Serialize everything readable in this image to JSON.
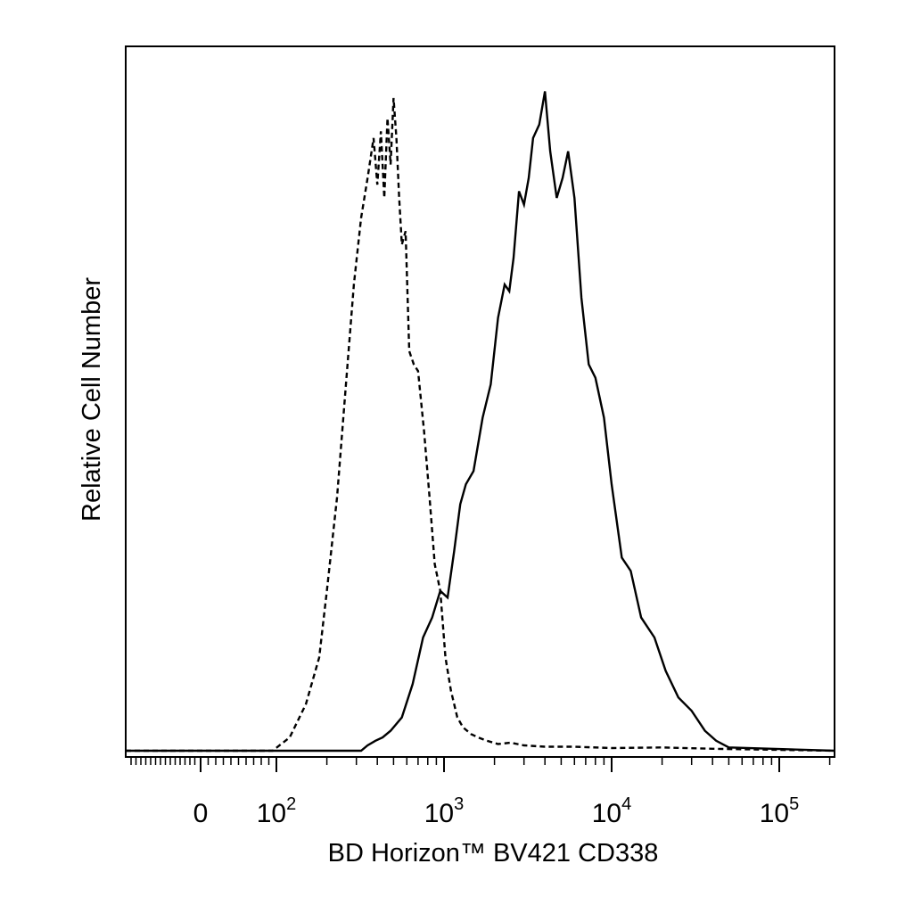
{
  "chart_data": {
    "type": "line",
    "title": "",
    "xlabel": "BD Horizon™ BV421 CD338",
    "ylabel": "Relative Cell Number",
    "x_scale": "biexponential",
    "xlim": [
      -60,
      200000
    ],
    "ylim": [
      0,
      1
    ],
    "grid": false,
    "x_ticks": [
      {
        "base": "0",
        "exp": ""
      },
      {
        "base": "10",
        "exp": "2"
      },
      {
        "base": "10",
        "exp": "3"
      },
      {
        "base": "10",
        "exp": "4"
      },
      {
        "base": "10",
        "exp": "5"
      }
    ],
    "series": [
      {
        "style": "dashed",
        "x": [
          0,
          95,
          120,
          150,
          180,
          200,
          230,
          260,
          290,
          320,
          350,
          380,
          400,
          420,
          440,
          460,
          480,
          500,
          520,
          540,
          560,
          590,
          620,
          660,
          700,
          760,
          820,
          880,
          950,
          1020,
          1100,
          1200,
          1300,
          1450,
          1600,
          1800,
          2100,
          2500,
          3000,
          4000,
          6000,
          10000,
          20000,
          40000,
          200000
        ],
        "y": [
          0,
          0,
          0.02,
          0.07,
          0.14,
          0.24,
          0.38,
          0.55,
          0.7,
          0.8,
          0.86,
          0.92,
          0.85,
          0.93,
          0.83,
          0.95,
          0.88,
          0.98,
          0.92,
          0.83,
          0.76,
          0.78,
          0.6,
          0.58,
          0.57,
          0.48,
          0.38,
          0.28,
          0.24,
          0.14,
          0.09,
          0.05,
          0.035,
          0.025,
          0.02,
          0.015,
          0.01,
          0.012,
          0.008,
          0.006,
          0.006,
          0.004,
          0.005,
          0.003,
          0
        ]
      },
      {
        "style": "solid",
        "x": [
          0,
          320,
          350,
          390,
          430,
          480,
          560,
          650,
          750,
          850,
          950,
          1050,
          1150,
          1250,
          1350,
          1500,
          1700,
          1900,
          2100,
          2300,
          2450,
          2600,
          2800,
          3000,
          3200,
          3400,
          3700,
          4000,
          4300,
          4700,
          5100,
          5500,
          6000,
          6600,
          7300,
          8000,
          9000,
          10000,
          11500,
          13000,
          15000,
          18000,
          21000,
          25000,
          30000,
          36000,
          42000,
          50000,
          200000
        ],
        "y": [
          0,
          0,
          0.008,
          0.015,
          0.02,
          0.03,
          0.05,
          0.1,
          0.17,
          0.2,
          0.24,
          0.23,
          0.3,
          0.37,
          0.4,
          0.42,
          0.5,
          0.55,
          0.65,
          0.7,
          0.69,
          0.74,
          0.84,
          0.82,
          0.86,
          0.92,
          0.94,
          0.99,
          0.9,
          0.83,
          0.86,
          0.9,
          0.83,
          0.68,
          0.58,
          0.56,
          0.5,
          0.4,
          0.29,
          0.27,
          0.2,
          0.17,
          0.12,
          0.08,
          0.06,
          0.03,
          0.015,
          0.005,
          0
        ]
      }
    ]
  }
}
